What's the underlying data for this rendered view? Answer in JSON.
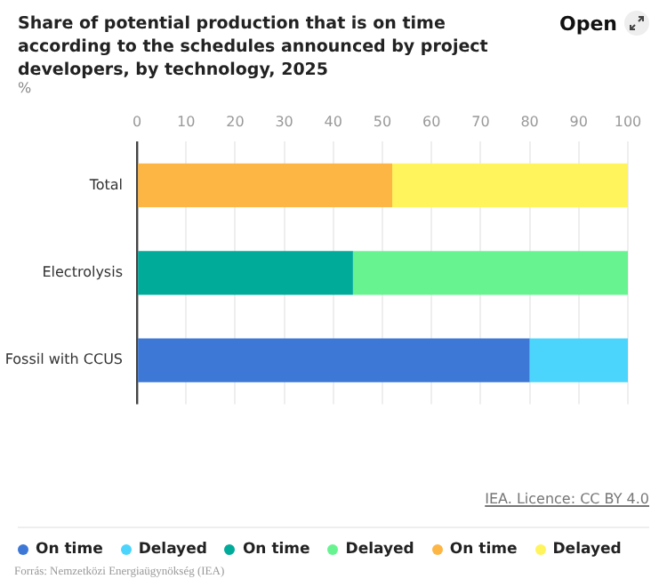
{
  "chart_data": {
    "type": "bar",
    "orientation": "horizontal",
    "stacked": true,
    "title": "Share of potential production that is on time according to the schedules announced by project developers, by technology, 2025",
    "xlabel": "%",
    "categories": [
      "Total",
      "Electrolysis",
      "Fossil with CCUS"
    ],
    "series": [
      {
        "name": "On time",
        "color": "#3e78d6",
        "values": [
          null,
          null,
          80
        ]
      },
      {
        "name": "Delayed",
        "color": "#4bd5fd",
        "values": [
          null,
          null,
          20
        ]
      },
      {
        "name": "On time",
        "color": "#00ab9a",
        "values": [
          null,
          44,
          null
        ]
      },
      {
        "name": "Delayed",
        "color": "#67f490",
        "values": [
          null,
          56,
          null
        ]
      },
      {
        "name": "On time",
        "color": "#fdb644",
        "values": [
          52,
          null,
          null
        ]
      },
      {
        "name": "Delayed",
        "color": "#fff45c",
        "values": [
          48,
          null,
          null
        ]
      }
    ],
    "xlim": [
      0,
      100
    ],
    "xticks": [
      0,
      10,
      20,
      30,
      40,
      50,
      60,
      70,
      80,
      90,
      100
    ],
    "grid": "x",
    "legend": "bottom",
    "annotations": [
      "Open",
      "IEA. Licence: CC BY 4.0",
      "Forrás: Nemzetközi Energiaügynökség (IEA)"
    ]
  }
}
